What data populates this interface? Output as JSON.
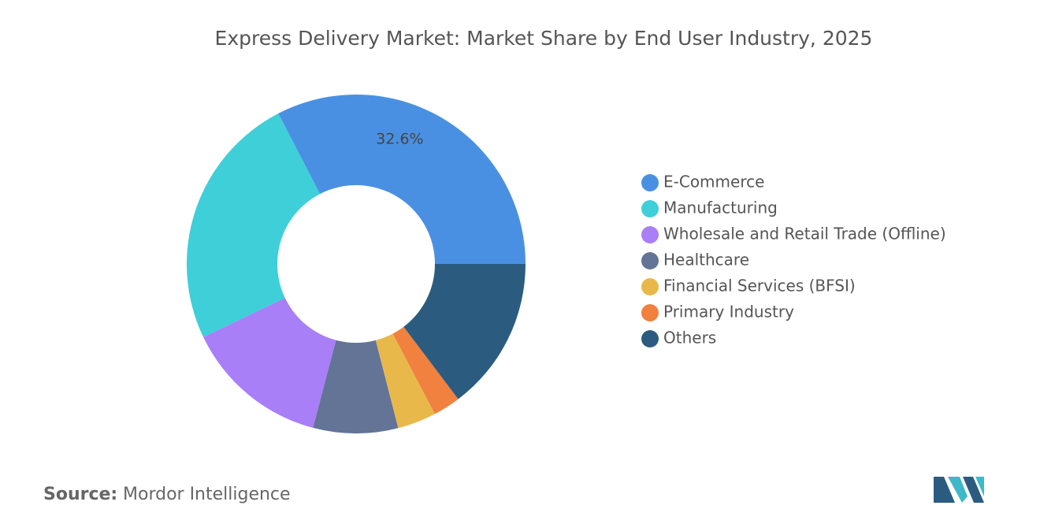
{
  "chart_data": {
    "type": "donut",
    "title": "Express Delivery Market: Market Share by End User Industry, 2025",
    "categories": [
      "E-Commerce",
      "Manufacturing",
      "Wholesale and Retail Trade (Offline)",
      "Healthcare",
      "Financial Services (BFSI)",
      "Primary Industry",
      "Others"
    ],
    "values": [
      32.6,
      24.5,
      13.8,
      8.1,
      3.7,
      2.6,
      14.7
    ],
    "value_labels": [
      "32.6%",
      null,
      null,
      null,
      null,
      null,
      null
    ],
    "colors": [
      "#4a90e2",
      "#3fcfd9",
      "#a87ff7",
      "#637496",
      "#e9b84a",
      "#f0813e",
      "#2b5c80"
    ],
    "legend": "right"
  },
  "source": {
    "label": "Source:",
    "text": "Mordor Intelligence"
  }
}
